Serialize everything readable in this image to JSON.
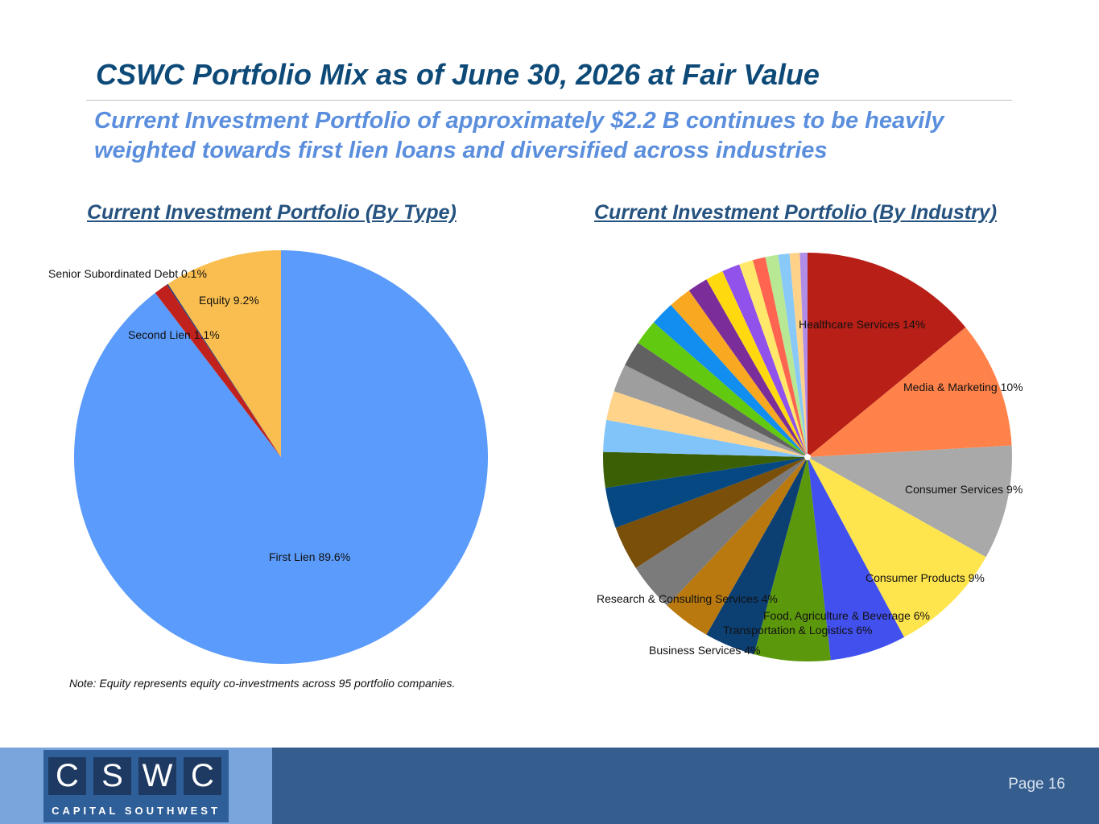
{
  "header": {
    "title": "CSWC Portfolio Mix as of June 30, 2026 at Fair Value",
    "subtitle": "Current Investment Portfolio of approximately $2.2 B continues to be heavily weighted towards first lien loans and diversified across industries"
  },
  "note": "Note: Equity represents equity co-investments across 95 portfolio companies.",
  "footer": {
    "logo_letters": [
      "C",
      "S",
      "W",
      "C"
    ],
    "logo_tagline": "CAPITAL SOUTHWEST",
    "page_label": "Page 16"
  },
  "chart_data": [
    {
      "type": "pie",
      "title": "Current Investment Portfolio (By Type)",
      "slices": [
        {
          "label": "First Lien 89.6%",
          "value": 89.6,
          "color": "#5b9bfb"
        },
        {
          "label": "Second Lien 1.1%",
          "value": 1.1,
          "color": "#c1211d"
        },
        {
          "label": "Senior Subordinated Debt 0.1%",
          "value": 0.1,
          "color": "#1f3e7a"
        },
        {
          "label": "Equity 9.2%",
          "value": 9.2,
          "color": "#f9be4f"
        }
      ]
    },
    {
      "type": "pie",
      "title": "Current Investment Portfolio (By Industry)",
      "slices": [
        {
          "label": "Healthcare Services 14%",
          "value": 14,
          "color": "#b71f17"
        },
        {
          "label": "Media & Marketing 10%",
          "value": 10,
          "color": "#ff824a"
        },
        {
          "label": "Consumer Services 9%",
          "value": 9,
          "color": "#a9a9a9"
        },
        {
          "label": "Consumer Products 9%",
          "value": 9,
          "color": "#ffe54d"
        },
        {
          "label": "Food, Agriculture & Beverage 6%",
          "value": 6,
          "color": "#4250ee"
        },
        {
          "label": "Transportation & Logistics 6%",
          "value": 6,
          "color": "#5c980c"
        },
        {
          "label": "Business Services 4%",
          "value": 4,
          "color": "#0c3f72"
        },
        {
          "label": "",
          "value": 3.8,
          "color": "#b9790f"
        },
        {
          "label": "Research & Consulting Services 4%",
          "value": 3.8,
          "color": "#7b7b7b"
        },
        {
          "label": "",
          "value": 3.5,
          "color": "#7a4f0a"
        },
        {
          "label": "",
          "value": 3.2,
          "color": "#054882"
        },
        {
          "label": "",
          "value": 2.8,
          "color": "#3b5f05"
        },
        {
          "label": "",
          "value": 2.5,
          "color": "#80c4fa"
        },
        {
          "label": "",
          "value": 2.3,
          "color": "#ffd38a"
        },
        {
          "label": "",
          "value": 2.2,
          "color": "#9e9e9e"
        },
        {
          "label": "",
          "value": 2.0,
          "color": "#616161"
        },
        {
          "label": "",
          "value": 2.0,
          "color": "#61c90f"
        },
        {
          "label": "",
          "value": 1.9,
          "color": "#128ef0"
        },
        {
          "label": "",
          "value": 1.8,
          "color": "#f9a822"
        },
        {
          "label": "",
          "value": 1.6,
          "color": "#7b2d99"
        },
        {
          "label": "",
          "value": 1.4,
          "color": "#ffd90f"
        },
        {
          "label": "",
          "value": 1.4,
          "color": "#9152ec"
        },
        {
          "label": "",
          "value": 1.1,
          "color": "#ffe86a"
        },
        {
          "label": "",
          "value": 1.0,
          "color": "#ff6450"
        },
        {
          "label": "",
          "value": 1.0,
          "color": "#b8e893"
        },
        {
          "label": "",
          "value": 0.9,
          "color": "#89c9f8"
        },
        {
          "label": "",
          "value": 0.8,
          "color": "#ffd28a"
        },
        {
          "label": "",
          "value": 0.6,
          "color": "#b08de6"
        }
      ]
    }
  ]
}
